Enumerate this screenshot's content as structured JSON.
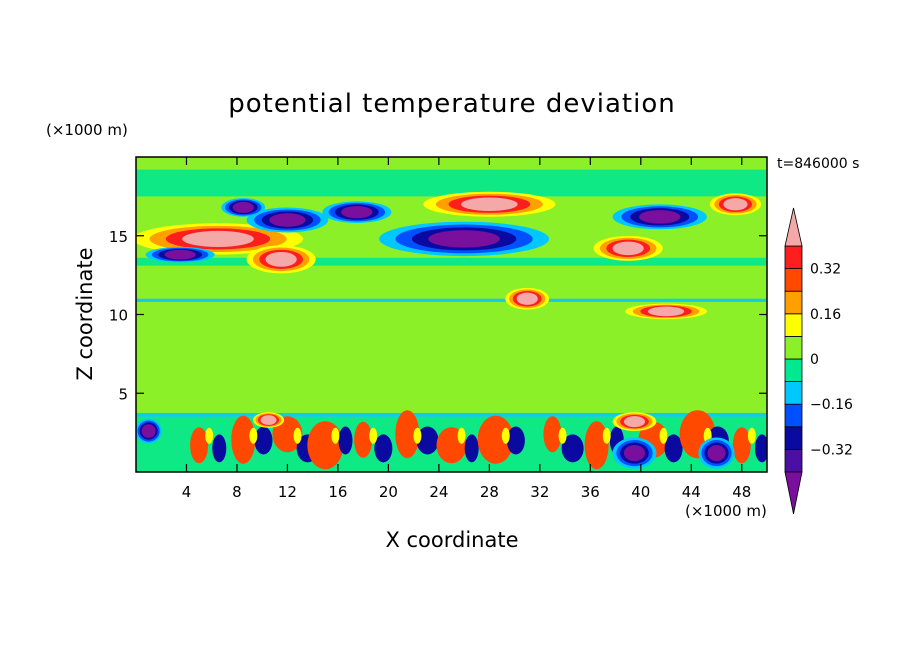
{
  "chart_data": {
    "type": "heatmap",
    "title": "potential temperature deviation",
    "xlabel": "X coordinate",
    "ylabel": "Z coordinate",
    "x_unit": "(×1000 m)",
    "y_unit": "(×1000 m)",
    "time_label": "t=846000 s",
    "xlim": [
      0,
      50
    ],
    "ylim": [
      0,
      20
    ],
    "x_ticks": [
      4,
      8,
      12,
      16,
      20,
      24,
      28,
      32,
      36,
      40,
      44,
      48
    ],
    "y_ticks": [
      5,
      10,
      15
    ],
    "colorbar": {
      "levels": [
        -0.48,
        -0.4,
        -0.32,
        -0.24,
        -0.16,
        -0.08,
        0,
        0.08,
        0.16,
        0.24,
        0.32,
        0.4
      ],
      "tick_values": [
        0.32,
        0.16,
        0,
        -0.16,
        -0.32
      ],
      "tick_labels": [
        "0.32",
        "0.16",
        "0",
        "−0.16",
        "−0.32"
      ],
      "colors": [
        "#7a0f9e",
        "#4b0fa6",
        "#0a0aa0",
        "#0050ff",
        "#00c8ff",
        "#00e890",
        "#8cf028",
        "#ffff00",
        "#ffa000",
        "#ff4800",
        "#ff1e1e",
        "#f4a8a8"
      ],
      "extend": "both"
    },
    "features": [
      {
        "field": "warm",
        "x": 6.5,
        "z": 14.8,
        "rx": 6.5,
        "rz": 0.8
      },
      {
        "field": "warm",
        "x": 11.5,
        "z": 13.5,
        "rx": 2.5,
        "rz": 0.7
      },
      {
        "field": "warm",
        "x": 31,
        "z": 11,
        "rx": 1.5,
        "rz": 0.5
      },
      {
        "field": "warm",
        "x": 42,
        "z": 10.2,
        "rx": 3,
        "rz": 0.3
      },
      {
        "field": "warm",
        "x": 39,
        "z": 14.2,
        "rx": 2.5,
        "rz": 0.6
      },
      {
        "field": "warm",
        "x": 47.5,
        "z": 17,
        "rx": 1.8,
        "rz": 0.5
      },
      {
        "field": "warm",
        "x": 28,
        "z": 17,
        "rx": 5,
        "rz": 0.6
      },
      {
        "field": "warm",
        "x": 10.5,
        "z": 3.3,
        "rx": 1,
        "rz": 0.3
      },
      {
        "field": "warm",
        "x": 39.5,
        "z": 3.2,
        "rx": 1.5,
        "rz": 0.4
      },
      {
        "field": "cold",
        "x": 26,
        "z": 14.8,
        "rx": 6.5,
        "rz": 0.9
      },
      {
        "field": "cold",
        "x": 12,
        "z": 16,
        "rx": 3,
        "rz": 0.6
      },
      {
        "field": "cold",
        "x": 17.5,
        "z": 16.5,
        "rx": 2.5,
        "rz": 0.5
      },
      {
        "field": "cold",
        "x": 41.5,
        "z": 16.2,
        "rx": 3.5,
        "rz": 0.6
      },
      {
        "field": "cold",
        "x": 8.5,
        "z": 16.8,
        "rx": 1.5,
        "rz": 0.4
      },
      {
        "field": "cold",
        "x": 3.5,
        "z": 13.8,
        "rx": 2.5,
        "rz": 0.3
      },
      {
        "field": "cold",
        "x": 46,
        "z": 1.2,
        "rx": 1.2,
        "rz": 0.8
      },
      {
        "field": "cold",
        "x": 39.5,
        "z": 1.2,
        "rx": 1.5,
        "rz": 0.8
      },
      {
        "field": "cold",
        "x": 1,
        "z": 2.6,
        "rx": 0.8,
        "rz": 0.6
      }
    ]
  }
}
